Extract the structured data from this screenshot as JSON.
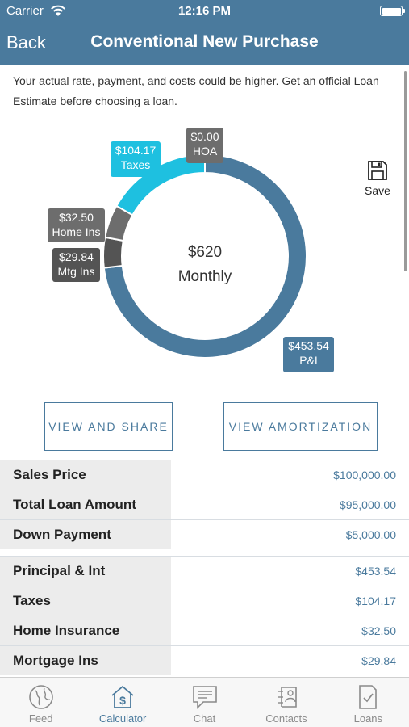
{
  "status_bar": {
    "carrier": "Carrier",
    "time": "12:16 PM"
  },
  "nav": {
    "back_label": "Back",
    "title": "Conventional New Purchase"
  },
  "disclaimer": "Your actual rate, payment, and costs could be higher. Get an official Loan Estimate before choosing a loan.",
  "chart_data": {
    "type": "pie",
    "style": "donut",
    "center_amount": "$620",
    "center_label": "Monthly",
    "slices": [
      {
        "name": "P&I",
        "value": 453.54,
        "display": "$453.54",
        "color": "#4a7a9d"
      },
      {
        "name": "Mtg Ins",
        "value": 29.84,
        "display": "$29.84",
        "color": "#545454"
      },
      {
        "name": "Home Ins",
        "value": 32.5,
        "display": "$32.50",
        "color": "#6d6d6d"
      },
      {
        "name": "Taxes",
        "value": 104.17,
        "display": "$104.17",
        "color": "#1ec0e0"
      },
      {
        "name": "HOA",
        "value": 0.0,
        "display": "$0.00",
        "color": "#6d6d6d"
      }
    ]
  },
  "save_label": "Save",
  "buttons": {
    "share": "VIEW AND SHARE",
    "amortization": "VIEW AMORTIZATION"
  },
  "loan_rows": [
    {
      "label": "Sales Price",
      "value": "$100,000.00"
    },
    {
      "label": "Total Loan Amount",
      "value": "$95,000.00"
    },
    {
      "label": "Down Payment",
      "value": "$5,000.00"
    }
  ],
  "payment_rows": [
    {
      "label": "Principal & Int",
      "value": "$453.54"
    },
    {
      "label": "Taxes",
      "value": "$104.17"
    },
    {
      "label": "Home Insurance",
      "value": "$32.50"
    },
    {
      "label": "Mortgage Ins",
      "value": "$29.84"
    }
  ],
  "tabs": [
    {
      "label": "Feed",
      "icon": "globe-icon",
      "active": false
    },
    {
      "label": "Calculator",
      "icon": "calculator-house-icon",
      "active": true
    },
    {
      "label": "Chat",
      "icon": "chat-icon",
      "active": false
    },
    {
      "label": "Contacts",
      "icon": "contacts-icon",
      "active": false
    },
    {
      "label": "Loans",
      "icon": "loans-icon",
      "active": false
    }
  ]
}
